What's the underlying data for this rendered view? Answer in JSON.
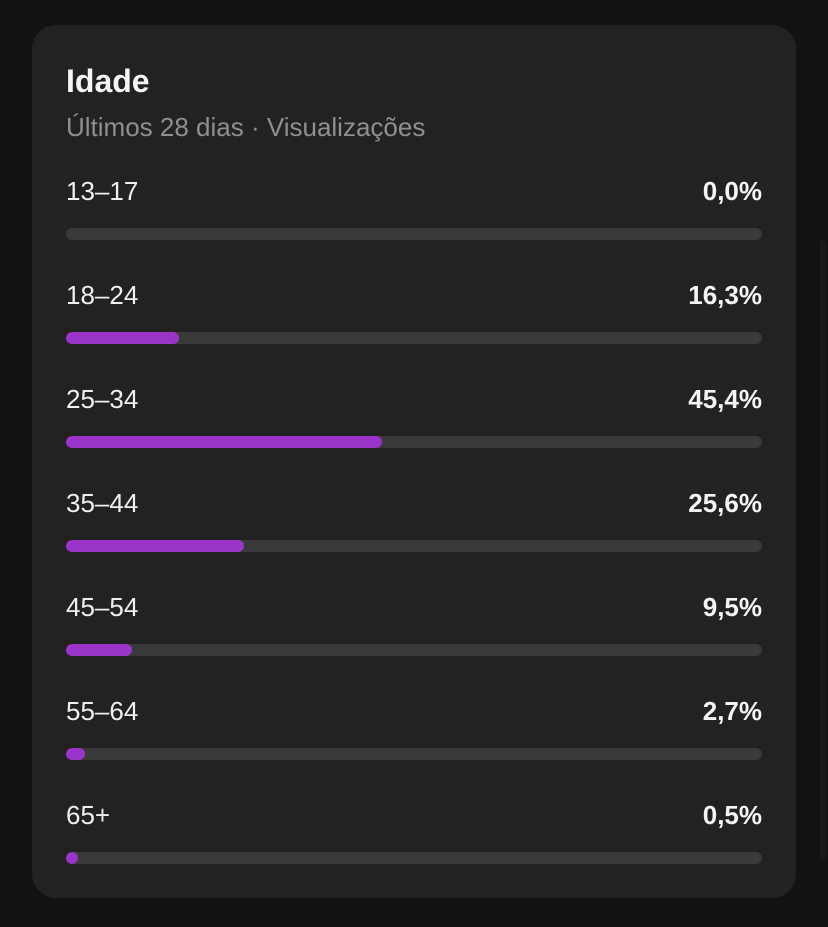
{
  "card": {
    "title": "Idade",
    "subtitle": "Últimos 28 dias · Visualizações"
  },
  "colors": {
    "bar_fill": "#9b34c9",
    "bar_track": "#3a3a3a",
    "card_bg": "#222222"
  },
  "age_rows": [
    {
      "label": "13–17",
      "value_text": "0,0%",
      "percent": 0.0
    },
    {
      "label": "18–24",
      "value_text": "16,3%",
      "percent": 16.3
    },
    {
      "label": "25–34",
      "value_text": "45,4%",
      "percent": 45.4
    },
    {
      "label": "35–44",
      "value_text": "25,6%",
      "percent": 25.6
    },
    {
      "label": "45–54",
      "value_text": "9,5%",
      "percent": 9.5
    },
    {
      "label": "55–64",
      "value_text": "2,7%",
      "percent": 2.7
    },
    {
      "label": "65+",
      "value_text": "0,5%",
      "percent": 0.5
    }
  ]
}
